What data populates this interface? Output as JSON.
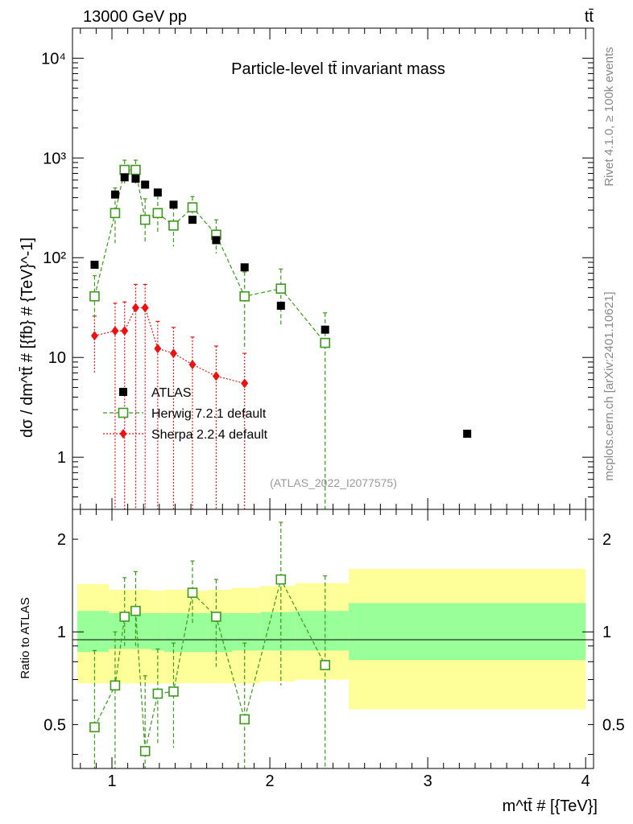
{
  "header": {
    "left": "13000 GeV pp",
    "right": "tt̄"
  },
  "side_text": {
    "rivet": "Rivet 4.1.0, ≥ 100k events",
    "mcplots": "mcplots.cern.ch [arXiv:2401.10621]"
  },
  "colors": {
    "atlas": "#000000",
    "herwig": "#3a9a1a",
    "sherpa": "#ee1111",
    "band_outer": "#ffff99",
    "band_inner": "#99ff99"
  },
  "chart_data": [
    {
      "id": "main",
      "type": "scatter",
      "scale": "log",
      "title": "Particle-level tt̄ invariant mass",
      "ylabel": "dσ / dm^tt̄ # [{fb} # {TeV}^-1]",
      "xlim": [
        0.75,
        4.05
      ],
      "ylim": [
        0.3,
        20000
      ],
      "y_ticks": [
        {
          "value": 1,
          "label": "1"
        },
        {
          "value": 10,
          "label": "10"
        },
        {
          "value": 100,
          "label": "10²"
        },
        {
          "value": 1000,
          "label": "10³"
        },
        {
          "value": 10000,
          "label": "10⁴"
        }
      ],
      "annotation": "(ATLAS_2022_I2077575)",
      "legend": [
        {
          "key": "atlas",
          "label": "ATLAS"
        },
        {
          "key": "herwig",
          "label": "Herwig 7.2.1 default"
        },
        {
          "key": "sherpa",
          "label": "Sherpa 2.2.4 default"
        }
      ],
      "series": [
        {
          "name": "ATLAS",
          "key": "atlas",
          "marker": "square-filled",
          "x": [
            0.89,
            1.02,
            1.08,
            1.15,
            1.21,
            1.29,
            1.39,
            1.51,
            1.66,
            1.84,
            2.07,
            2.35,
            3.25
          ],
          "y": [
            85,
            430,
            640,
            620,
            540,
            450,
            340,
            240,
            150,
            80,
            33,
            19,
            1.72
          ]
        },
        {
          "name": "Herwig 7.2.1 default",
          "key": "herwig",
          "marker": "square-open",
          "line": "dashed",
          "x": [
            0.89,
            1.02,
            1.08,
            1.15,
            1.21,
            1.29,
            1.39,
            1.51,
            1.66,
            1.84,
            2.07,
            2.35
          ],
          "y": [
            41,
            280,
            760,
            760,
            240,
            280,
            210,
            320,
            170,
            41,
            49,
            14
          ],
          "y_lo": [
            25,
            140,
            550,
            550,
            140,
            180,
            130,
            230,
            110,
            12,
            21,
            0.1
          ],
          "y_hi": [
            66,
            500,
            950,
            950,
            390,
            420,
            330,
            410,
            240,
            72,
            77,
            28
          ]
        },
        {
          "name": "Sherpa 2.2.4 default",
          "key": "sherpa",
          "marker": "diamond-filled",
          "line": "dotted",
          "x": [
            0.89,
            1.02,
            1.08,
            1.15,
            1.21,
            1.29,
            1.39,
            1.51,
            1.66,
            1.84
          ],
          "y": [
            16.5,
            18.5,
            18.5,
            31.5,
            31.5,
            12.3,
            11,
            8.5,
            6.5,
            5.5
          ],
          "y_lo": [
            7,
            0.1,
            0.1,
            0.1,
            0.1,
            0.1,
            0.1,
            0.1,
            0.1,
            0.1
          ],
          "y_hi": [
            26,
            35,
            36,
            54,
            54,
            23,
            20,
            16,
            13,
            11
          ]
        }
      ]
    },
    {
      "id": "ratio",
      "type": "scatter",
      "scale": "log",
      "ylabel": "Ratio to ATLAS",
      "xlabel": "m^tt̄ # [{TeV}]",
      "xlim": [
        0.75,
        4.05
      ],
      "ylim": [
        0.36,
        2.5
      ],
      "x_ticks": [
        {
          "value": 1,
          "label": "1"
        },
        {
          "value": 2,
          "label": "2"
        },
        {
          "value": 3,
          "label": "3"
        },
        {
          "value": 4,
          "label": "4"
        }
      ],
      "y_ticks": [
        {
          "value": 0.5,
          "label": "0.5"
        },
        {
          "value": 1,
          "label": "1"
        },
        {
          "value": 2,
          "label": "2"
        }
      ],
      "bands": {
        "edges": [
          0.78,
          0.98,
          1.25,
          1.33,
          1.49,
          1.61,
          1.76,
          1.94,
          2.16,
          2.5,
          4.0
        ],
        "outer_lo": [
          0.68,
          0.68,
          0.68,
          0.68,
          0.68,
          0.68,
          0.68,
          0.69,
          0.7,
          0.56
        ],
        "outer_hi": [
          1.43,
          1.37,
          1.36,
          1.37,
          1.36,
          1.37,
          1.39,
          1.41,
          1.44,
          1.6
        ],
        "inner_lo": [
          0.86,
          0.88,
          0.87,
          0.86,
          0.86,
          0.86,
          0.87,
          0.87,
          0.87,
          0.81
        ],
        "inner_hi": [
          1.17,
          1.15,
          1.15,
          1.15,
          1.15,
          1.15,
          1.15,
          1.16,
          1.17,
          1.24
        ]
      },
      "series": [
        {
          "name": "Herwig 7.2.1 default",
          "key": "herwig",
          "marker": "square-open",
          "line": "dashed",
          "x": [
            0.89,
            1.02,
            1.08,
            1.15,
            1.21,
            1.29,
            1.39,
            1.51,
            1.66,
            1.84,
            2.07,
            2.35
          ],
          "y": [
            0.49,
            0.67,
            1.12,
            1.17,
            0.41,
            0.63,
            0.64,
            1.34,
            1.12,
            0.52,
            1.48,
            0.78
          ],
          "y_lo": [
            0.3,
            0.3,
            0.9,
            0.9,
            0.3,
            0.43,
            0.42,
            1.05,
            0.77,
            0.3,
            0.67,
            0.3
          ],
          "y_hi": [
            0.87,
            1.0,
            1.5,
            1.57,
            0.72,
            0.88,
            0.92,
            1.7,
            1.48,
            0.92,
            2.27,
            1.52
          ]
        }
      ]
    }
  ]
}
